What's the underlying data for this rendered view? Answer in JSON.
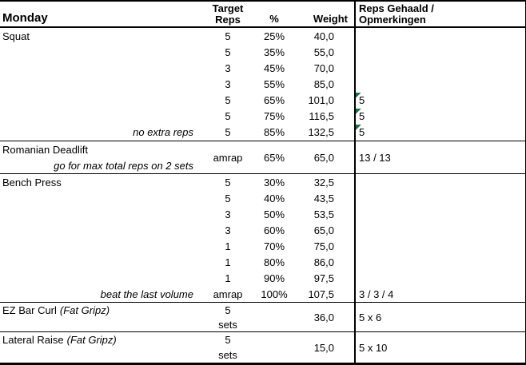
{
  "header": {
    "day": "Monday",
    "target_line1": "Target",
    "target_line2": "Reps",
    "pct": "%",
    "weight": "Weight",
    "result_line1": "Reps Gehaald /",
    "result_line2": "Opmerkingen"
  },
  "sections": {
    "squat": {
      "name": "Squat",
      "rows": [
        {
          "reps": "5",
          "pct": "25%",
          "weight": "40,0",
          "result": ""
        },
        {
          "reps": "5",
          "pct": "35%",
          "weight": "55,0",
          "result": ""
        },
        {
          "reps": "3",
          "pct": "45%",
          "weight": "70,0",
          "result": ""
        },
        {
          "reps": "3",
          "pct": "55%",
          "weight": "85,0",
          "result": ""
        },
        {
          "reps": "5",
          "pct": "65%",
          "weight": "101,0",
          "result": "5",
          "has_comment_marker": true
        },
        {
          "reps": "5",
          "pct": "75%",
          "weight": "116,5",
          "result": "5",
          "has_comment_marker": true
        },
        {
          "reps": "5",
          "pct": "85%",
          "weight": "132,5",
          "result": "5",
          "has_comment_marker": true,
          "note": "no extra reps"
        }
      ]
    },
    "romanian_deadlift": {
      "name": "Romanian Deadlift",
      "note": "go for max total reps on 2 sets",
      "reps": "amrap",
      "pct": "65%",
      "weight": "65,0",
      "result": "13 / 13"
    },
    "bench_press": {
      "name": "Bench Press",
      "rows": [
        {
          "reps": "5",
          "pct": "30%",
          "weight": "32,5",
          "result": ""
        },
        {
          "reps": "5",
          "pct": "40%",
          "weight": "43,5",
          "result": ""
        },
        {
          "reps": "3",
          "pct": "50%",
          "weight": "53,5",
          "result": ""
        },
        {
          "reps": "3",
          "pct": "60%",
          "weight": "65,0",
          "result": ""
        },
        {
          "reps": "1",
          "pct": "70%",
          "weight": "75,0",
          "result": ""
        },
        {
          "reps": "1",
          "pct": "80%",
          "weight": "86,0",
          "result": ""
        },
        {
          "reps": "1",
          "pct": "90%",
          "weight": "97,5",
          "result": ""
        },
        {
          "reps": "amrap",
          "pct": "100%",
          "weight": "107,5",
          "result": "3 / 3 / 4",
          "note": "beat the last volume"
        }
      ]
    },
    "ez_bar_curl": {
      "name": "EZ Bar Curl",
      "name_suffix": "(Fat Gripz)",
      "reps_line1": "5",
      "reps_line2": "sets",
      "weight": "36,0",
      "result": "5 x 6"
    },
    "lateral_raise": {
      "name": "Lateral Raise",
      "name_suffix": "(Fat Gripz)",
      "reps_line1": "5",
      "reps_line2": "sets",
      "weight": "15,0",
      "result": "5 x 10"
    }
  },
  "colors": {
    "comment_marker": "#1F7145",
    "border": "#000000"
  }
}
